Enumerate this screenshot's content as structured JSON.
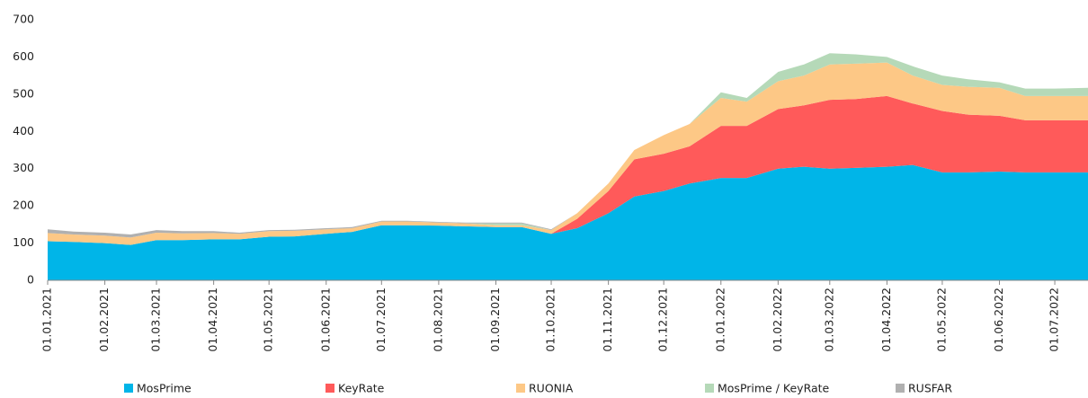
{
  "chart_data": {
    "type": "stacked_area",
    "x": [
      "01.01.2021",
      "15.01.2021",
      "01.02.2021",
      "15.02.2021",
      "01.03.2021",
      "15.03.2021",
      "01.04.2021",
      "15.04.2021",
      "01.05.2021",
      "15.05.2021",
      "01.06.2021",
      "15.06.2021",
      "01.07.2021",
      "15.07.2021",
      "01.08.2021",
      "15.08.2021",
      "01.09.2021",
      "15.09.2021",
      "01.10.2021",
      "15.10.2021",
      "01.11.2021",
      "15.11.2021",
      "01.12.2021",
      "15.12.2021",
      "01.01.2022",
      "15.01.2022",
      "01.02.2022",
      "15.02.2022",
      "01.03.2022",
      "15.03.2022",
      "01.04.2022",
      "15.04.2022",
      "01.05.2022",
      "15.05.2022",
      "01.06.2022",
      "15.06.2022",
      "01.07.2022",
      "19.07.2022"
    ],
    "series": [
      {
        "name": "MosPrime",
        "color": "#00b5e8",
        "values": [
          105,
          103,
          100,
          95,
          108,
          108,
          110,
          110,
          117,
          118,
          125,
          130,
          148,
          148,
          147,
          145,
          143,
          143,
          125,
          140,
          180,
          225,
          240,
          260,
          275,
          275,
          300,
          305,
          300,
          302,
          305,
          310,
          290,
          290,
          292,
          290,
          290,
          290
        ]
      },
      {
        "name": "KeyRate",
        "color": "#ff5a5a",
        "values": [
          0,
          0,
          0,
          0,
          0,
          0,
          0,
          0,
          0,
          0,
          0,
          0,
          0,
          0,
          0,
          0,
          0,
          0,
          0,
          25,
          60,
          100,
          100,
          100,
          140,
          140,
          160,
          165,
          185,
          185,
          190,
          165,
          165,
          155,
          150,
          140,
          140,
          140
        ]
      },
      {
        "name": "RUONIA",
        "color": "#fdc886",
        "values": [
          22,
          20,
          20,
          20,
          20,
          18,
          17,
          15,
          15,
          15,
          12,
          10,
          10,
          10,
          8,
          8,
          5,
          5,
          10,
          15,
          20,
          25,
          50,
          60,
          75,
          65,
          75,
          80,
          95,
          95,
          90,
          75,
          70,
          75,
          75,
          65,
          65,
          65
        ]
      },
      {
        "name": "MosPrime / KeyRate",
        "color": "#b5d9b8",
        "values": [
          0,
          0,
          0,
          0,
          0,
          0,
          0,
          0,
          0,
          0,
          0,
          0,
          0,
          0,
          0,
          0,
          5,
          5,
          0,
          0,
          0,
          0,
          0,
          0,
          15,
          10,
          25,
          30,
          30,
          25,
          15,
          25,
          25,
          20,
          15,
          20,
          20,
          22
        ]
      },
      {
        "name": "RUSFAR",
        "color": "#b0b0b0",
        "values": [
          10,
          8,
          8,
          8,
          7,
          6,
          5,
          3,
          3,
          3,
          3,
          3,
          2,
          2,
          2,
          2,
          2,
          2,
          2,
          0,
          0,
          0,
          0,
          0,
          0,
          0,
          0,
          0,
          0,
          0,
          0,
          0,
          0,
          0,
          0,
          0,
          0,
          0
        ]
      }
    ],
    "xlim": [
      "01.01.2021",
      "19.07.2022"
    ],
    "xticks": [
      "01.01.2021",
      "01.02.2021",
      "01.03.2021",
      "01.04.2021",
      "01.05.2021",
      "01.06.2021",
      "01.07.2021",
      "01.08.2021",
      "01.09.2021",
      "01.10.2021",
      "01.11.2021",
      "01.12.2021",
      "01.01.2022",
      "01.02.2022",
      "01.03.2022",
      "01.04.2022",
      "01.05.2022",
      "01.06.2022",
      "01.07.2022"
    ],
    "ylim": [
      0,
      700
    ],
    "yticks": [
      0,
      100,
      200,
      300,
      400,
      500,
      600,
      700
    ],
    "grid": false,
    "legend": "bottom"
  }
}
